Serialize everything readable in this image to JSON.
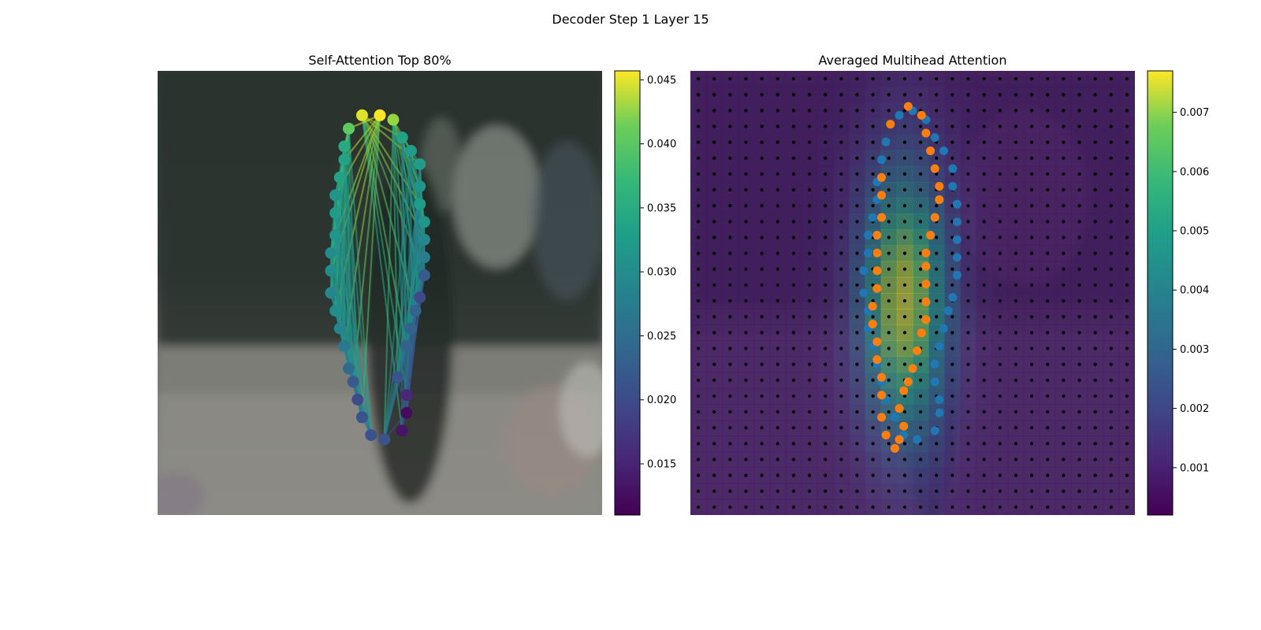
{
  "figure": {
    "title": "Decoder Step 1 Layer 15"
  },
  "chart_data": [
    {
      "type": "scatter",
      "title": "Self-Attention Top 80%",
      "description_kind": "contour points over image with attention lines",
      "colormap": "viridis",
      "colorbar": {
        "range": [
          0.011,
          0.0457
        ],
        "ticks": [
          "0.015",
          "0.020",
          "0.025",
          "0.030",
          "0.035",
          "0.040",
          "0.045"
        ],
        "tick_values": [
          0.015,
          0.02,
          0.025,
          0.03,
          0.035,
          0.04,
          0.045
        ]
      },
      "points": [
        {
          "x": 0.46,
          "y": 0.1,
          "v": 0.044
        },
        {
          "x": 0.5,
          "y": 0.1,
          "v": 0.0455
        },
        {
          "x": 0.53,
          "y": 0.11,
          "v": 0.04
        },
        {
          "x": 0.43,
          "y": 0.13,
          "v": 0.037
        },
        {
          "x": 0.55,
          "y": 0.15,
          "v": 0.031
        },
        {
          "x": 0.42,
          "y": 0.17,
          "v": 0.032
        },
        {
          "x": 0.57,
          "y": 0.18,
          "v": 0.03
        },
        {
          "x": 0.42,
          "y": 0.2,
          "v": 0.031
        },
        {
          "x": 0.59,
          "y": 0.21,
          "v": 0.03
        },
        {
          "x": 0.41,
          "y": 0.24,
          "v": 0.031
        },
        {
          "x": 0.59,
          "y": 0.26,
          "v": 0.029
        },
        {
          "x": 0.4,
          "y": 0.28,
          "v": 0.029
        },
        {
          "x": 0.59,
          "y": 0.3,
          "v": 0.03
        },
        {
          "x": 0.4,
          "y": 0.32,
          "v": 0.03
        },
        {
          "x": 0.6,
          "y": 0.34,
          "v": 0.029
        },
        {
          "x": 0.4,
          "y": 0.37,
          "v": 0.029
        },
        {
          "x": 0.6,
          "y": 0.38,
          "v": 0.027
        },
        {
          "x": 0.39,
          "y": 0.41,
          "v": 0.028
        },
        {
          "x": 0.6,
          "y": 0.42,
          "v": 0.026
        },
        {
          "x": 0.39,
          "y": 0.45,
          "v": 0.028
        },
        {
          "x": 0.6,
          "y": 0.46,
          "v": 0.021
        },
        {
          "x": 0.39,
          "y": 0.5,
          "v": 0.027
        },
        {
          "x": 0.59,
          "y": 0.51,
          "v": 0.019
        },
        {
          "x": 0.4,
          "y": 0.54,
          "v": 0.028
        },
        {
          "x": 0.58,
          "y": 0.54,
          "v": 0.022
        },
        {
          "x": 0.41,
          "y": 0.58,
          "v": 0.027
        },
        {
          "x": 0.57,
          "y": 0.58,
          "v": 0.022
        },
        {
          "x": 0.42,
          "y": 0.62,
          "v": 0.025
        },
        {
          "x": 0.56,
          "y": 0.62,
          "v": 0.022
        },
        {
          "x": 0.43,
          "y": 0.67,
          "v": 0.023
        },
        {
          "x": 0.54,
          "y": 0.69,
          "v": 0.02
        },
        {
          "x": 0.44,
          "y": 0.7,
          "v": 0.021
        },
        {
          "x": 0.56,
          "y": 0.73,
          "v": 0.015
        },
        {
          "x": 0.45,
          "y": 0.74,
          "v": 0.019
        },
        {
          "x": 0.56,
          "y": 0.77,
          "v": 0.012
        },
        {
          "x": 0.46,
          "y": 0.78,
          "v": 0.02
        },
        {
          "x": 0.55,
          "y": 0.81,
          "v": 0.013
        },
        {
          "x": 0.48,
          "y": 0.82,
          "v": 0.02
        },
        {
          "x": 0.51,
          "y": 0.83,
          "v": 0.02
        }
      ]
    },
    {
      "type": "heatmap",
      "title": "Averaged Multihead Attention",
      "colormap": "viridis",
      "grid": [
        28,
        28
      ],
      "colorbar": {
        "range": [
          0.0002,
          0.0077
        ],
        "ticks": [
          "0.001",
          "0.002",
          "0.003",
          "0.004",
          "0.005",
          "0.006",
          "0.007"
        ],
        "tick_values": [
          0.001,
          0.002,
          0.003,
          0.004,
          0.005,
          0.006,
          0.007
        ]
      },
      "hotspot": {
        "x": 0.48,
        "y": 0.52
      },
      "series": [
        {
          "color": "#1f77b4",
          "points": [
            [
              0.47,
              0.1
            ],
            [
              0.5,
              0.09
            ],
            [
              0.53,
              0.11
            ],
            [
              0.55,
              0.15
            ],
            [
              0.57,
              0.18
            ],
            [
              0.59,
              0.22
            ],
            [
              0.59,
              0.26
            ],
            [
              0.6,
              0.3
            ],
            [
              0.6,
              0.34
            ],
            [
              0.6,
              0.38
            ],
            [
              0.6,
              0.42
            ],
            [
              0.6,
              0.46
            ],
            [
              0.59,
              0.51
            ],
            [
              0.58,
              0.54
            ],
            [
              0.57,
              0.58
            ],
            [
              0.56,
              0.62
            ],
            [
              0.55,
              0.66
            ],
            [
              0.55,
              0.7
            ],
            [
              0.56,
              0.74
            ],
            [
              0.56,
              0.77
            ],
            [
              0.55,
              0.81
            ],
            [
              0.51,
              0.83
            ],
            [
              0.48,
              0.82
            ],
            [
              0.46,
              0.78
            ],
            [
              0.44,
              0.74
            ],
            [
              0.43,
              0.7
            ],
            [
              0.42,
              0.66
            ],
            [
              0.41,
              0.62
            ],
            [
              0.4,
              0.58
            ],
            [
              0.4,
              0.54
            ],
            [
              0.39,
              0.5
            ],
            [
              0.39,
              0.45
            ],
            [
              0.4,
              0.41
            ],
            [
              0.4,
              0.37
            ],
            [
              0.41,
              0.33
            ],
            [
              0.42,
              0.29
            ],
            [
              0.42,
              0.25
            ],
            [
              0.43,
              0.2
            ],
            [
              0.44,
              0.16
            ]
          ]
        },
        {
          "color": "#ff7f0e",
          "points": [
            [
              0.45,
              0.12
            ],
            [
              0.49,
              0.08
            ],
            [
              0.52,
              0.1
            ],
            [
              0.53,
              0.14
            ],
            [
              0.54,
              0.18
            ],
            [
              0.55,
              0.22
            ],
            [
              0.56,
              0.26
            ],
            [
              0.56,
              0.29
            ],
            [
              0.55,
              0.33
            ],
            [
              0.54,
              0.37
            ],
            [
              0.53,
              0.41
            ],
            [
              0.53,
              0.44
            ],
            [
              0.53,
              0.48
            ],
            [
              0.53,
              0.52
            ],
            [
              0.53,
              0.56
            ],
            [
              0.52,
              0.59
            ],
            [
              0.51,
              0.63
            ],
            [
              0.5,
              0.67
            ],
            [
              0.49,
              0.7
            ],
            [
              0.48,
              0.72
            ],
            [
              0.47,
              0.76
            ],
            [
              0.48,
              0.8
            ],
            [
              0.47,
              0.83
            ],
            [
              0.46,
              0.85
            ],
            [
              0.44,
              0.82
            ],
            [
              0.43,
              0.78
            ],
            [
              0.43,
              0.73
            ],
            [
              0.43,
              0.69
            ],
            [
              0.42,
              0.65
            ],
            [
              0.42,
              0.61
            ],
            [
              0.41,
              0.57
            ],
            [
              0.41,
              0.53
            ],
            [
              0.42,
              0.49
            ],
            [
              0.42,
              0.45
            ],
            [
              0.42,
              0.41
            ],
            [
              0.42,
              0.37
            ],
            [
              0.43,
              0.33
            ],
            [
              0.43,
              0.28
            ],
            [
              0.43,
              0.24
            ]
          ]
        }
      ]
    }
  ]
}
